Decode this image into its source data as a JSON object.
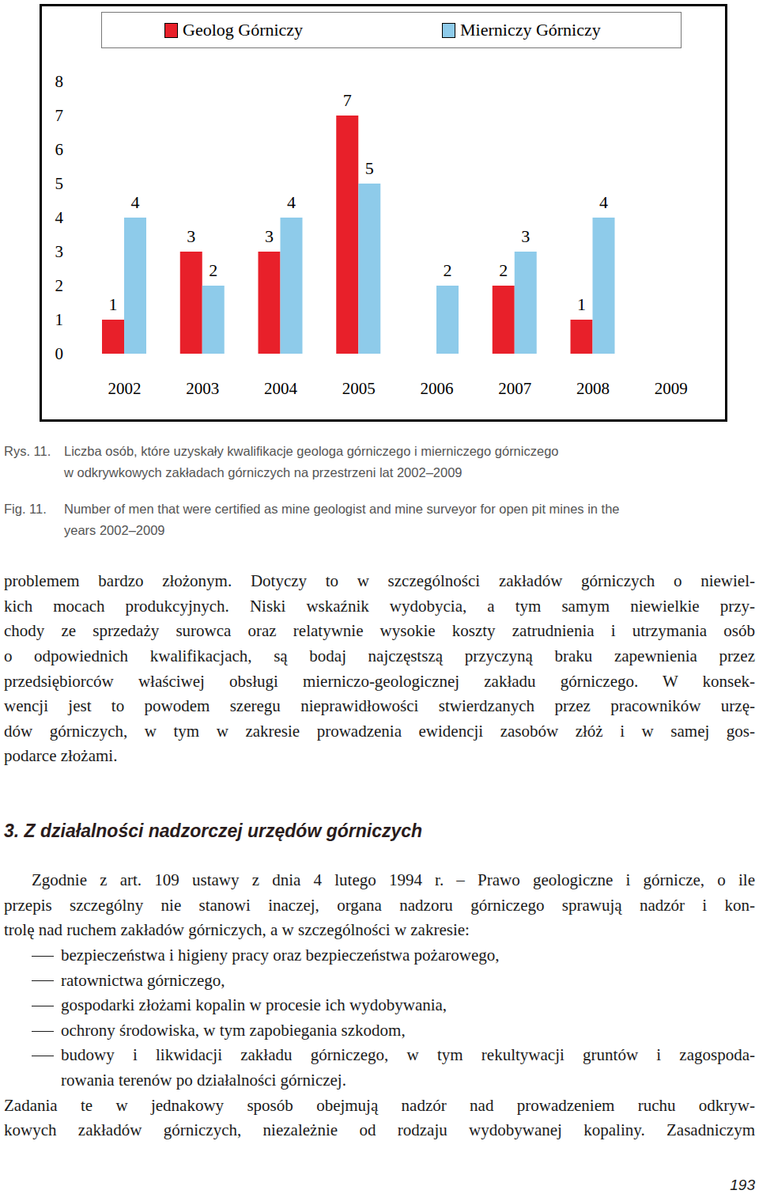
{
  "chart_data": {
    "type": "bar",
    "categories": [
      "2002",
      "2003",
      "2004",
      "2005",
      "2006",
      "2007",
      "2008",
      "2009"
    ],
    "series": [
      {
        "name": "Geolog Górniczy",
        "color": "#e8202a",
        "values": [
          1,
          3,
          3,
          7,
          0,
          2,
          1,
          0
        ]
      },
      {
        "name": "Mierniczy Górniczy",
        "color": "#8ecbea",
        "values": [
          4,
          2,
          4,
          5,
          2,
          3,
          4,
          0
        ]
      }
    ],
    "ylim": [
      0,
      8
    ],
    "yticks": [
      0,
      1,
      2,
      3,
      4,
      5,
      6,
      7,
      8
    ],
    "grid": false,
    "legend": "top",
    "data_labels": true
  },
  "document": {
    "caption_pl": {
      "label": "Rys. 11.",
      "lines": [
        "Liczba osób, które uzyskały kwalifikacje geologa górniczego i mierniczego górniczego",
        "w odkrywkowych zakładach górniczych na przestrzeni lat 2002–2009"
      ]
    },
    "caption_en": {
      "label": "Fig. 11.",
      "lines": [
        "Number of men that were certified as mine geologist and mine surveyor for open pit mines in the",
        "years 2002–2009"
      ]
    },
    "body_1": [
      "problemem bardzo złożonym. Dotyczy to w szczególności zakładów górniczych o niewiel-",
      "kich mocach produkcyjnych. Niski wskaźnik wydobycia, a tym samym niewielkie przy-",
      "chody ze sprzedaży surowca oraz relatywnie wysokie koszty zatrudnienia i utrzymania osób",
      "o odpowiednich kwalifikacjach, są bodaj najczęstszą przyczyną braku zapewnienia przez",
      "przedsiębiorców właściwej obsługi mierniczo-geologicznej zakładu górniczego. W konsek-",
      "wencji jest to powodem szeregu nieprawidłowości stwierdzanych przez pracowników urzę-",
      "dów górniczych, w tym w zakresie prowadzenia ewidencji zasobów złóż i w samej gos-",
      "podarce złożami."
    ],
    "heading": "3. Z działalności nadzorczej urzędów górniczych",
    "body_2": [
      "Zgodnie z art. 109 ustawy z dnia 4 lutego 1994 r. – Prawo geologiczne i górnicze, o ile",
      "przepis szczególny nie stanowi inaczej, organa nadzoru górniczego sprawują nadzór i kon-",
      "trolę nad ruchem zakładów górniczych, a w szczególności w zakresie:"
    ],
    "list": [
      [
        "bezpieczeństwa i higieny pracy oraz bezpieczeństwa pożarowego,"
      ],
      [
        "ratownictwa górniczego,"
      ],
      [
        "gospodarki złożami kopalin w procesie ich wydobywania,"
      ],
      [
        "ochrony środowiska, w tym zapobiegania szkodom,"
      ],
      [
        "budowy i likwidacji zakładu górniczego, w tym rekultywacji gruntów i zagospoda-",
        "rowania terenów po działalności górniczej."
      ]
    ],
    "body_3": [
      "Zadania te w jednakowy sposób obejmują nadzór nad prowadzeniem ruchu odkryw-",
      "kowych zakładów górniczych, niezależnie od rodzaju wydobywanej kopaliny. Zasadniczym"
    ],
    "page_number": "193"
  }
}
